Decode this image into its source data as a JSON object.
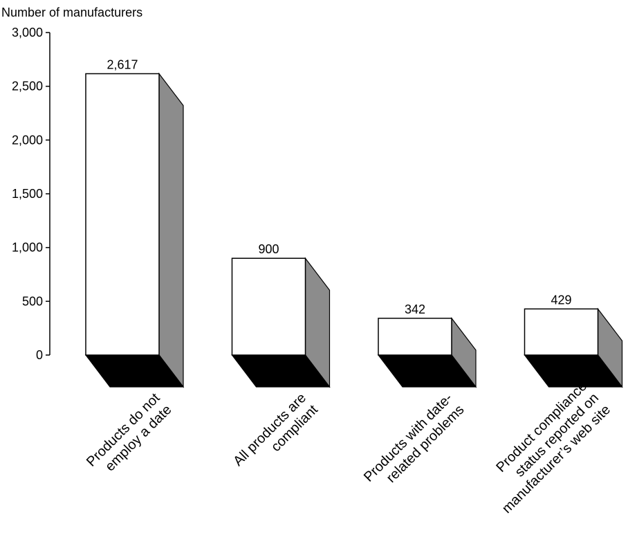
{
  "chart_data": {
    "type": "bar",
    "ylabel": "Number of manufacturers",
    "xlabel": "",
    "ylim": [
      0,
      3000
    ],
    "yticks": [
      "0",
      "500",
      "1,000",
      "1,500",
      "2,000",
      "2,500",
      "3,000"
    ],
    "grid": false,
    "categories": [
      [
        "Products do not",
        "employ a date"
      ],
      [
        "All products are",
        "compliant"
      ],
      [
        "Products with date-",
        "related problems"
      ],
      [
        "Product compliance",
        "status reported on",
        "manufacturer’s web site"
      ]
    ],
    "values": [
      2617,
      900,
      342,
      429
    ],
    "data_labels": [
      "2,617",
      "900",
      "342",
      "429"
    ],
    "colors": {
      "bar_face": "#ffffff",
      "bar_side": "#8c8c8c",
      "bar_floor": "#000000",
      "outline": "#000000"
    }
  }
}
